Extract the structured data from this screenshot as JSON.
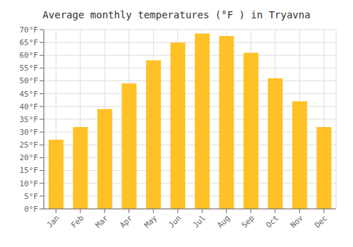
{
  "chart_data": {
    "type": "bar",
    "title": "Average monthly temperatures (°F ) in Tryavna",
    "categories": [
      "Jan",
      "Feb",
      "Mar",
      "Apr",
      "May",
      "Jun",
      "Jul",
      "Aug",
      "Sep",
      "Oct",
      "Nov",
      "Dec"
    ],
    "values": [
      27,
      32,
      39,
      49,
      58,
      65,
      68.5,
      67.5,
      61,
      51,
      42,
      32
    ],
    "color": "#FFC125",
    "ylim": [
      0,
      70
    ],
    "yticks": [
      {
        "value": 0,
        "label": "0°F"
      },
      {
        "value": 5,
        "label": "5°F"
      },
      {
        "value": 10,
        "label": "10°F"
      },
      {
        "value": 15,
        "label": "15°F"
      },
      {
        "value": 20,
        "label": "20°F"
      },
      {
        "value": 25,
        "label": "25°F"
      },
      {
        "value": 30,
        "label": "30°F"
      },
      {
        "value": 35,
        "label": "35°F"
      },
      {
        "value": 40,
        "label": "40°F"
      },
      {
        "value": 45,
        "label": "45°F"
      },
      {
        "value": 50,
        "label": "50°F"
      },
      {
        "value": 55,
        "label": "55°F"
      },
      {
        "value": 60,
        "label": "60°F"
      },
      {
        "value": 65,
        "label": "65°F"
      },
      {
        "value": 70,
        "label": "70°F"
      }
    ],
    "grid": true
  }
}
